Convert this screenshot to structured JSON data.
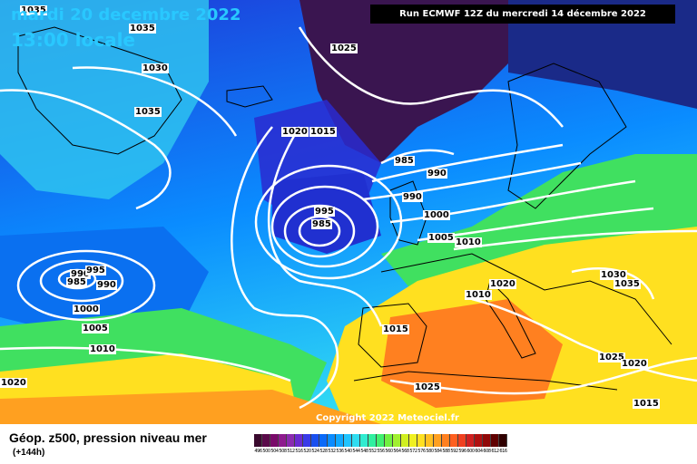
{
  "header": {
    "date_label": "mardi 20 decembre 2022",
    "time_label": "13:00 locale",
    "run_label": "Run ECMWF 12Z du mercredi 14 décembre 2022"
  },
  "footer": {
    "product_title": "Géop. z500, pression niveau mer",
    "lead_time": "(+144h)",
    "copyright": "Copyright 2022 Meteociel.fr"
  },
  "color_scale": {
    "labels": [
      "496",
      "500",
      "504",
      "508",
      "512",
      "516",
      "520",
      "524",
      "528",
      "532",
      "536",
      "540",
      "544",
      "548",
      "552",
      "556",
      "560",
      "564",
      "568",
      "572",
      "576",
      "580",
      "584",
      "588",
      "592",
      "596",
      "600",
      "604",
      "608",
      "612",
      "616"
    ],
    "colors": [
      "#3a0a2e",
      "#5a0a4a",
      "#7a0a6a",
      "#8e1a8e",
      "#8a2ab0",
      "#6a2ad0",
      "#3a3ae8",
      "#1a50f0",
      "#0a6af8",
      "#0a8cff",
      "#10a8ff",
      "#20c4ff",
      "#30dcf0",
      "#30ecd0",
      "#30f0a0",
      "#40f070",
      "#70f040",
      "#a0f030",
      "#d0f020",
      "#f0f020",
      "#ffe020",
      "#ffc020",
      "#ffa020",
      "#ff8020",
      "#ff6020",
      "#f04020",
      "#d02020",
      "#b01010",
      "#900808",
      "#600000",
      "#300000"
    ]
  },
  "map": {
    "theme_colors": {
      "sea_ice": "#3a1550",
      "deep_blue": "#1e3ad8",
      "mid_blue": "#0a8cff",
      "cyan": "#30d8f4",
      "green": "#40e060",
      "yellow": "#ffe020",
      "orange": "#ff8020",
      "isobar": "#ffffff",
      "coastline": "#000000"
    },
    "isobar_labels": [
      "1035",
      "1035",
      "1030",
      "1035",
      "1025",
      "1020",
      "1015",
      "985",
      "990",
      "995",
      "990",
      "985",
      "1000",
      "1005",
      "1010",
      "990",
      "995",
      "985",
      "990",
      "1000",
      "1005",
      "1010",
      "1015",
      "1020",
      "1010",
      "1030",
      "1035",
      "1025",
      "1020",
      "1025",
      "1015",
      "1020"
    ]
  }
}
